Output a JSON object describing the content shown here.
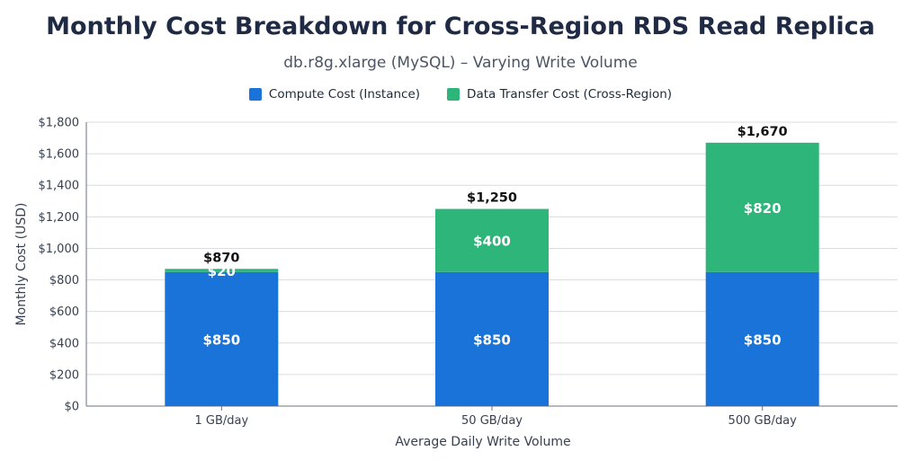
{
  "colors": {
    "compute": "#1a73d9",
    "transfer": "#2db57a",
    "grid": "#d9dce1",
    "axis": "#6b7280"
  },
  "chart_data": {
    "type": "bar",
    "stacked": true,
    "title": "Monthly Cost Breakdown for Cross-Region RDS Read Replica",
    "subtitle": "db.r8g.xlarge (MySQL) – Varying Write Volume",
    "xlabel": "Average Daily Write Volume",
    "ylabel": "Monthly Cost (USD)",
    "ylim": [
      0,
      1800
    ],
    "yticks": [
      0,
      200,
      400,
      600,
      800,
      1000,
      1200,
      1400,
      1600,
      1800
    ],
    "ytick_labels": [
      "$0",
      "$200",
      "$400",
      "$600",
      "$800",
      "$1,000",
      "$1,200",
      "$1,400",
      "$1,600",
      "$1,800"
    ],
    "grid": true,
    "legend_position": "top-center",
    "categories": [
      "1 GB/day",
      "50 GB/day",
      "500 GB/day"
    ],
    "series": [
      {
        "name": "Compute Cost (Instance)",
        "values": [
          850,
          850,
          850
        ],
        "labels": [
          "$850",
          "$850",
          "$850"
        ]
      },
      {
        "name": "Data Transfer Cost (Cross-Region)",
        "values": [
          20,
          400,
          820
        ],
        "labels": [
          "$20",
          "$400",
          "$820"
        ]
      }
    ],
    "totals": [
      870,
      1250,
      1670
    ],
    "total_labels": [
      "$870",
      "$1,250",
      "$1,670"
    ]
  }
}
